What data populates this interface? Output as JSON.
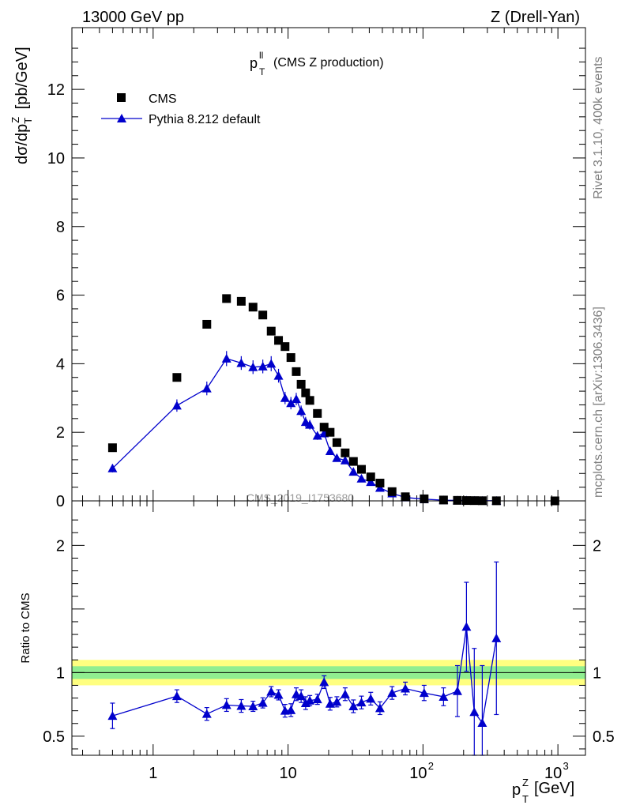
{
  "header": {
    "left": "13000 GeV pp",
    "right": "Z (Drell-Yan)"
  },
  "side_text": {
    "rivet": "Rivet 3.1.10,  400k events",
    "mcplots": "mcplots.cern.ch [arXiv:1306.3436]"
  },
  "colors": {
    "data": "#000000",
    "mc": "#0000cc",
    "band_inner": "#90ee90",
    "band_outer": "#ffff80"
  },
  "chart_data": [
    {
      "type": "scatter",
      "title": "(CMS Z production)",
      "title_symbol": "p",
      "title_sup": "ll",
      "title_sub": "T",
      "ylabel": "dσ/dp_T^Z [pb/GeV]",
      "watermark": "CMS_2019_I1753680",
      "xscale": "log",
      "xlim": [
        0.25,
        1600
      ],
      "ylim": [
        0,
        13.8
      ],
      "yticks": [
        0,
        2,
        4,
        6,
        8,
        10,
        12
      ],
      "legend": [
        "CMS",
        "Pythia 8.212 default"
      ],
      "legend_position": "top-left",
      "series": [
        {
          "name": "CMS",
          "marker": "square",
          "x": [
            0.5,
            1.5,
            2.5,
            3.5,
            4.5,
            5.5,
            6.5,
            7.5,
            8.5,
            9.5,
            10.5,
            11.5,
            12.5,
            13.5,
            14.5,
            16.5,
            18.5,
            20.5,
            23.0,
            26.5,
            30.5,
            35.0,
            41.0,
            48.0,
            59.0,
            74.0,
            102.0,
            142.0,
            180.0,
            210.0,
            240.0,
            275.0,
            350.0,
            950.0
          ],
          "y": [
            1.55,
            3.6,
            5.15,
            5.9,
            5.82,
            5.65,
            5.42,
            4.95,
            4.68,
            4.5,
            4.18,
            3.77,
            3.4,
            3.15,
            2.93,
            2.55,
            2.15,
            2.0,
            1.7,
            1.4,
            1.15,
            0.92,
            0.7,
            0.52,
            0.27,
            0.12,
            0.06,
            0.025,
            0.015,
            0.01,
            0.008,
            0.005,
            0.003,
            0.0005
          ]
        },
        {
          "name": "Pythia 8.212 default",
          "marker": "triangle",
          "x": [
            0.5,
            1.5,
            2.5,
            3.5,
            4.5,
            5.5,
            6.5,
            7.5,
            8.5,
            9.5,
            10.5,
            11.5,
            12.5,
            13.5,
            14.5,
            16.5,
            18.5,
            20.5,
            23.0,
            26.5,
            30.5,
            35.0,
            41.0,
            48.0,
            59.0,
            74.0,
            102.0,
            142.0,
            180.0,
            210.0,
            240.0,
            275.0,
            350.0
          ],
          "y": [
            0.95,
            2.78,
            3.28,
            4.15,
            4.02,
            3.9,
            3.92,
            4.0,
            3.65,
            3.0,
            2.85,
            2.97,
            2.62,
            2.3,
            2.22,
            1.9,
            1.97,
            1.45,
            1.25,
            1.18,
            0.85,
            0.65,
            0.55,
            0.38,
            0.22,
            0.1,
            0.05,
            0.02,
            0.013,
            0.013,
            0.006,
            0.003,
            0.004
          ],
          "yerr": [
            0.12,
            0.18,
            0.2,
            0.22,
            0.2,
            0.2,
            0.2,
            0.22,
            0.2,
            0.18,
            0.18,
            0.18,
            0.16,
            0.15,
            0.14,
            0.12,
            0.12,
            0.1,
            0.08,
            0.08,
            0.06,
            0.05,
            0.04,
            0.03,
            0.02,
            0.01,
            0.01,
            0.005,
            0.004,
            0.004,
            0.003,
            0.002,
            0.002
          ]
        }
      ]
    },
    {
      "type": "line",
      "ylabel": "Ratio to CMS",
      "xlabel_symbol": "p",
      "xlabel_sup": "Z",
      "xlabel_sub": "T",
      "xlabel_unit": "[GeV]",
      "xscale": "log",
      "xlim": [
        0.25,
        1600
      ],
      "ylim": [
        0.35,
        2.35
      ],
      "yticks": [
        0.5,
        1,
        2
      ],
      "yticklabels": [
        "0.5",
        "1",
        "2"
      ],
      "xticks": [
        1,
        10,
        100,
        1000
      ],
      "xticklabels": [
        "1",
        "10",
        "10^2",
        "10^3"
      ],
      "band_inner": [
        0.95,
        1.05
      ],
      "band_outer": [
        0.9,
        1.1
      ],
      "series": [
        {
          "name": "Pythia 8.212 default",
          "x": [
            0.5,
            1.5,
            2.5,
            3.5,
            4.5,
            5.5,
            6.5,
            7.5,
            8.5,
            9.5,
            10.5,
            11.5,
            12.5,
            13.5,
            14.5,
            16.5,
            18.5,
            20.5,
            23.0,
            26.5,
            30.5,
            35.0,
            41.0,
            48.0,
            59.0,
            74.0,
            102.0,
            142.0,
            180.0,
            210.0,
            240.0,
            275.0,
            350.0
          ],
          "y": [
            0.66,
            0.815,
            0.675,
            0.745,
            0.738,
            0.735,
            0.762,
            0.85,
            0.825,
            0.7,
            0.705,
            0.83,
            0.815,
            0.76,
            0.78,
            0.79,
            0.925,
            0.755,
            0.77,
            0.83,
            0.735,
            0.765,
            0.795,
            0.72,
            0.84,
            0.875,
            0.84,
            0.81,
            0.855,
            1.36,
            0.69,
            0.605,
            1.27
          ],
          "yerr": [
            0.1,
            0.05,
            0.05,
            0.05,
            0.05,
            0.04,
            0.04,
            0.04,
            0.04,
            0.05,
            0.05,
            0.05,
            0.05,
            0.05,
            0.04,
            0.04,
            0.05,
            0.05,
            0.04,
            0.05,
            0.05,
            0.05,
            0.05,
            0.05,
            0.05,
            0.05,
            0.06,
            0.07,
            0.2,
            0.35,
            0.5,
            0.45,
            0.6
          ]
        }
      ]
    }
  ]
}
